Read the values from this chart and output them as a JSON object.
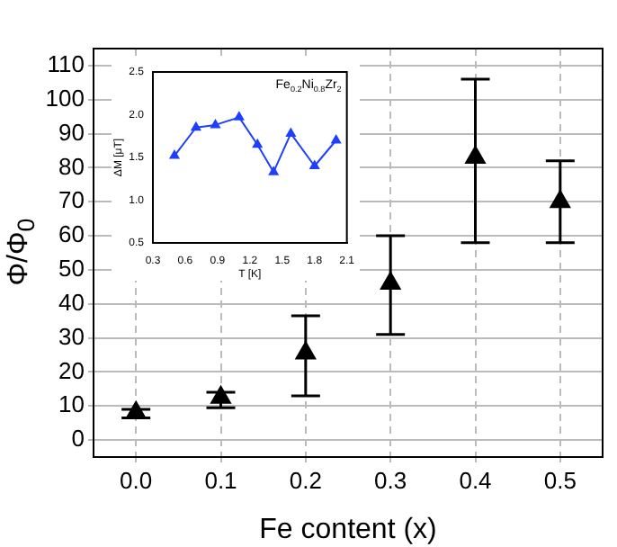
{
  "chart_data": [
    {
      "type": "scatter",
      "xlabel": "Fe content (x)",
      "ylabel": "Φ/Φ$_{0}$",
      "x": [
        0,
        0.1,
        0.2,
        0.3,
        0.4,
        0.5
      ],
      "series": [
        {
          "color": "#000000",
          "values": [
            8,
            12.5,
            25.5,
            46,
            83,
            70
          ],
          "errors": [
            [
              6.5,
              9
            ],
            [
              9.5,
              14
            ],
            [
              13,
              36.5
            ],
            [
              31,
              60
            ],
            [
              58,
              106
            ],
            [
              58,
              82
            ]
          ]
        }
      ],
      "xlim": [
        -0.05,
        0.55
      ],
      "xticks": [
        {
          "value": 0,
          "label": "0.0"
        },
        0.1,
        0.2,
        0.3,
        0.4,
        0.5
      ],
      "ylim": [
        -5,
        115
      ],
      "yticks": [
        0,
        10,
        20,
        30,
        40,
        50,
        60,
        70,
        80,
        90,
        100,
        110
      ],
      "grid": true,
      "marker": "triangle",
      "legend": false
    },
    {
      "type": "line",
      "xlabel": "T [K]",
      "ylabel": "ΔM [μT]",
      "annotations": [
        "Fe$_{0.2}$Ni$_{0.8}$Zr$_{2}$"
      ],
      "x": [
        0.5,
        0.7,
        0.88,
        1.1,
        1.27,
        1.42,
        1.58,
        1.8,
        2.0
      ],
      "series": [
        {
          "color": "#1f3fff",
          "values": [
            1.52,
            1.85,
            1.88,
            1.97,
            1.65,
            1.33,
            1.78,
            1.4,
            1.7
          ]
        }
      ],
      "xlim": [
        0.3,
        2.1
      ],
      "xticks": [
        0.3,
        0.6,
        0.9,
        1.2,
        1.5,
        1.8,
        2.1
      ],
      "ylim": [
        0.5,
        2.5
      ],
      "yticks": [
        0.5,
        {
          "value": 1,
          "label": "1.0"
        },
        1.5,
        {
          "value": 2,
          "label": "2.0"
        },
        2.5
      ],
      "grid": false,
      "marker": "triangle",
      "line_style": "solid",
      "legend": false
    }
  ]
}
